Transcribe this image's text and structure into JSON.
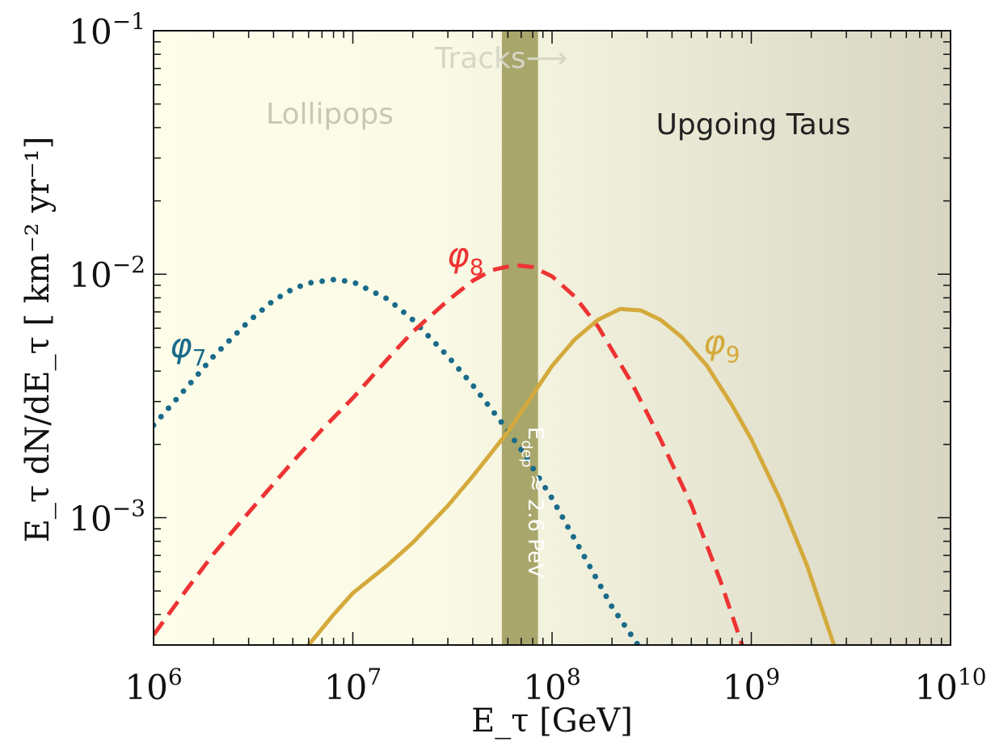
{
  "chart_data": {
    "type": "line",
    "title": "",
    "xlabel": "E_τ [GeV]",
    "ylabel": "E_τ dN/dE_τ [ km⁻² yr⁻¹]",
    "xscale": "log",
    "yscale": "log",
    "xlim": [
      1000000,
      10000000000
    ],
    "ylim": [
      0.0003,
      0.1
    ],
    "grid": false,
    "legend": "none",
    "x_tick_labels": [
      {
        "base": "10",
        "exp": "6",
        "value": 1000000
      },
      {
        "base": "10",
        "exp": "7",
        "value": 10000000
      },
      {
        "base": "10",
        "exp": "8",
        "value": 100000000
      },
      {
        "base": "10",
        "exp": "9",
        "value": 1000000000
      },
      {
        "base": "10",
        "exp": "10",
        "value": 10000000000
      }
    ],
    "y_tick_labels": [
      {
        "base": "10",
        "exp": "−1",
        "value": 0.1
      },
      {
        "base": "10",
        "exp": "−2",
        "value": 0.01
      },
      {
        "base": "10",
        "exp": "−3",
        "value": 0.001
      }
    ],
    "regions": [
      {
        "label": "Lollipops",
        "color": "#c8c8b8"
      },
      {
        "label": "Upgoing Taus",
        "color": "#222222"
      },
      {
        "label": "Tracks⟶",
        "color": "#d6d6c6"
      }
    ],
    "band": {
      "x_range": [
        56000000,
        85000000
      ],
      "color": "#a8a66a",
      "label_main": "E",
      "label_sub": "dep",
      "label_rest": " ≈ 2.6 PeV"
    },
    "background_gradient": [
      "#fdfdea",
      "#fafae6",
      "#d8d6c2"
    ],
    "series": [
      {
        "name": "φ7",
        "label_main": "φ",
        "label_sub": "7",
        "style": "dotted",
        "color": "#1a6b8a",
        "x": [
          1000000,
          1500000,
          2000000,
          3000000,
          4000000,
          5000000,
          6000000,
          8000000,
          10000000,
          15000000,
          20000000,
          30000000,
          40000000,
          55000000,
          70000000,
          100000000,
          150000000,
          200000000,
          270000000
        ],
        "y": [
          0.0024,
          0.0035,
          0.0046,
          0.0064,
          0.0078,
          0.0087,
          0.0092,
          0.0095,
          0.0093,
          0.0079,
          0.0065,
          0.0046,
          0.0035,
          0.0025,
          0.0019,
          0.0012,
          0.00066,
          0.00043,
          0.0003
        ]
      },
      {
        "name": "φ8",
        "label_main": "φ",
        "label_sub": "8",
        "style": "dashed",
        "color": "#ee3333",
        "x": [
          1000000,
          1500000,
          2000000,
          3000000,
          5000000,
          7000000,
          10000000,
          15000000,
          20000000,
          30000000,
          40000000,
          50000000,
          65000000,
          80000000,
          100000000,
          130000000,
          170000000,
          250000000,
          350000000,
          500000000,
          700000000,
          900000000
        ],
        "y": [
          0.00033,
          0.00052,
          0.00071,
          0.00105,
          0.0017,
          0.0023,
          0.0031,
          0.0045,
          0.0058,
          0.0078,
          0.0094,
          0.0104,
          0.0109,
          0.0107,
          0.0098,
          0.0081,
          0.0061,
          0.0036,
          0.0021,
          0.00113,
          0.00055,
          0.0003
        ]
      },
      {
        "name": "φ9",
        "label_main": "φ",
        "label_sub": "9",
        "style": "solid",
        "color": "#d4aa3c",
        "x": [
          6000000,
          8000000,
          10000000,
          15000000,
          20000000,
          30000000,
          40000000,
          60000000,
          80000000,
          100000000,
          130000000,
          170000000,
          220000000,
          280000000,
          350000000,
          450000000,
          600000000,
          800000000,
          1000000000,
          1400000000,
          1900000000,
          2600000000
        ],
        "y": [
          0.0003,
          0.0004,
          0.00049,
          0.00064,
          0.00079,
          0.00112,
          0.00148,
          0.00225,
          0.0032,
          0.0042,
          0.0054,
          0.0065,
          0.0072,
          0.0071,
          0.0065,
          0.0055,
          0.0042,
          0.0029,
          0.0021,
          0.00118,
          0.00064,
          0.0003
        ]
      }
    ]
  }
}
